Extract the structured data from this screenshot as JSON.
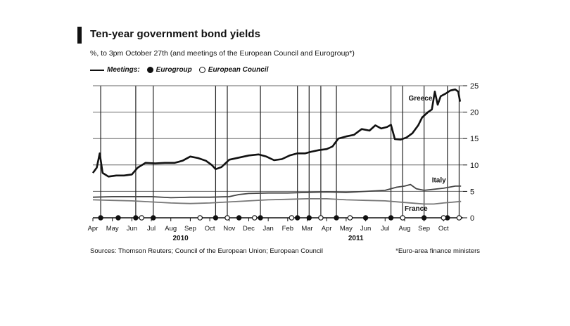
{
  "title": "Ten-year government bond yields",
  "subtitle": "%, to 3pm October 27th (and meetings of the European Council and Eurogroup*)",
  "legend": {
    "meetings_label": "Meetings:",
    "eurogroup_label": "Eurogroup",
    "council_label": "European Council"
  },
  "sources": "Sources: Thomson Reuters; Council of the European Union; European Council",
  "footnote": "*Euro-area finance ministers",
  "chart_data": {
    "type": "line",
    "title": "Ten-year government bond yields",
    "ylabel": "%",
    "ylim": [
      0,
      25
    ],
    "y_ticks": [
      0,
      5,
      10,
      15,
      20,
      25
    ],
    "xlim": [
      0,
      19
    ],
    "x_ticks": [
      "Apr",
      "May",
      "Jun",
      "Jul",
      "Aug",
      "Sep",
      "Oct",
      "Nov",
      "Dec",
      "Jan",
      "Feb",
      "Mar",
      "Apr",
      "May",
      "Jun",
      "Jul",
      "Aug",
      "Sep",
      "Oct"
    ],
    "year_labels": [
      {
        "label": "2010",
        "month_index": 4.5
      },
      {
        "label": "2011",
        "month_index": 13.5
      }
    ],
    "grid": true,
    "y_axis_side": "right",
    "series": [
      {
        "name": "Greece",
        "color": "#111111",
        "weight": "bold",
        "points": [
          [
            0,
            8.5
          ],
          [
            0.2,
            9.5
          ],
          [
            0.35,
            12.2
          ],
          [
            0.5,
            8.5
          ],
          [
            0.8,
            7.8
          ],
          [
            1.2,
            8.0
          ],
          [
            1.6,
            8.0
          ],
          [
            2.0,
            8.2
          ],
          [
            2.3,
            9.5
          ],
          [
            2.7,
            10.4
          ],
          [
            3.2,
            10.3
          ],
          [
            3.7,
            10.4
          ],
          [
            4.2,
            10.4
          ],
          [
            4.6,
            10.8
          ],
          [
            5.0,
            11.6
          ],
          [
            5.4,
            11.3
          ],
          [
            5.8,
            10.8
          ],
          [
            6.1,
            10.0
          ],
          [
            6.3,
            9.2
          ],
          [
            6.6,
            9.6
          ],
          [
            7.0,
            11.0
          ],
          [
            7.5,
            11.4
          ],
          [
            8.0,
            11.8
          ],
          [
            8.5,
            12.0
          ],
          [
            8.9,
            11.6
          ],
          [
            9.3,
            10.9
          ],
          [
            9.7,
            11.1
          ],
          [
            10.1,
            11.8
          ],
          [
            10.5,
            12.2
          ],
          [
            10.9,
            12.2
          ],
          [
            11.2,
            12.5
          ],
          [
            11.6,
            12.8
          ],
          [
            12.0,
            13.0
          ],
          [
            12.3,
            13.5
          ],
          [
            12.6,
            15.0
          ],
          [
            13.0,
            15.4
          ],
          [
            13.4,
            15.7
          ],
          [
            13.8,
            16.8
          ],
          [
            14.2,
            16.5
          ],
          [
            14.5,
            17.5
          ],
          [
            14.8,
            16.9
          ],
          [
            15.1,
            17.2
          ],
          [
            15.3,
            17.6
          ],
          [
            15.5,
            14.9
          ],
          [
            15.8,
            14.8
          ],
          [
            16.1,
            15.2
          ],
          [
            16.4,
            16.0
          ],
          [
            16.7,
            17.5
          ],
          [
            16.9,
            19.0
          ],
          [
            17.2,
            20.0
          ],
          [
            17.4,
            20.5
          ],
          [
            17.55,
            23.9
          ],
          [
            17.7,
            21.4
          ],
          [
            17.85,
            23.0
          ],
          [
            18.1,
            23.5
          ],
          [
            18.35,
            24.1
          ],
          [
            18.6,
            24.3
          ],
          [
            18.75,
            23.9
          ],
          [
            18.85,
            22.0
          ]
        ]
      },
      {
        "name": "Italy",
        "color": "#444444",
        "weight": "normal",
        "points": [
          [
            0,
            3.9
          ],
          [
            1,
            4.0
          ],
          [
            2,
            4.0
          ],
          [
            3,
            4.0
          ],
          [
            4,
            3.8
          ],
          [
            5,
            3.9
          ],
          [
            6,
            3.9
          ],
          [
            7,
            4.0
          ],
          [
            7.5,
            4.4
          ],
          [
            8,
            4.6
          ],
          [
            9,
            4.7
          ],
          [
            10,
            4.7
          ],
          [
            11,
            4.8
          ],
          [
            12,
            4.9
          ],
          [
            13,
            4.8
          ],
          [
            14,
            5.0
          ],
          [
            15,
            5.2
          ],
          [
            15.6,
            5.8
          ],
          [
            16,
            6.0
          ],
          [
            16.3,
            6.3
          ],
          [
            16.6,
            5.5
          ],
          [
            17,
            5.2
          ],
          [
            17.5,
            5.4
          ],
          [
            18,
            5.6
          ],
          [
            18.6,
            6.0
          ],
          [
            18.9,
            6.0
          ]
        ]
      },
      {
        "name": "France",
        "color": "#777777",
        "weight": "normal",
        "points": [
          [
            0,
            3.4
          ],
          [
            1,
            3.3
          ],
          [
            2,
            3.2
          ],
          [
            3,
            3.0
          ],
          [
            4,
            2.8
          ],
          [
            5,
            2.7
          ],
          [
            6,
            2.8
          ],
          [
            7,
            3.0
          ],
          [
            8,
            3.2
          ],
          [
            9,
            3.4
          ],
          [
            10,
            3.5
          ],
          [
            11,
            3.6
          ],
          [
            12,
            3.6
          ],
          [
            13,
            3.4
          ],
          [
            14,
            3.3
          ],
          [
            15,
            3.2
          ],
          [
            16,
            2.9
          ],
          [
            17,
            2.6
          ],
          [
            17.5,
            2.6
          ],
          [
            18,
            2.8
          ],
          [
            18.9,
            3.1
          ]
        ]
      }
    ],
    "eurogroup_meetings": [
      0.4,
      1.3,
      2.2,
      3.1,
      6.3,
      7.5,
      8.6,
      10.5,
      11.1,
      12.5,
      14.0,
      15.3,
      17.0,
      18.2
    ],
    "council_meetings": [
      2.5,
      5.5,
      6.9,
      8.3,
      10.2,
      11.7,
      13.2,
      15.9,
      18.0,
      18.8
    ],
    "meeting_lines": [
      0.4,
      2.2,
      3.1,
      6.3,
      6.9,
      8.6,
      10.5,
      11.1,
      11.7,
      12.5,
      15.3,
      15.9,
      17.0,
      18.2,
      18.8
    ]
  }
}
